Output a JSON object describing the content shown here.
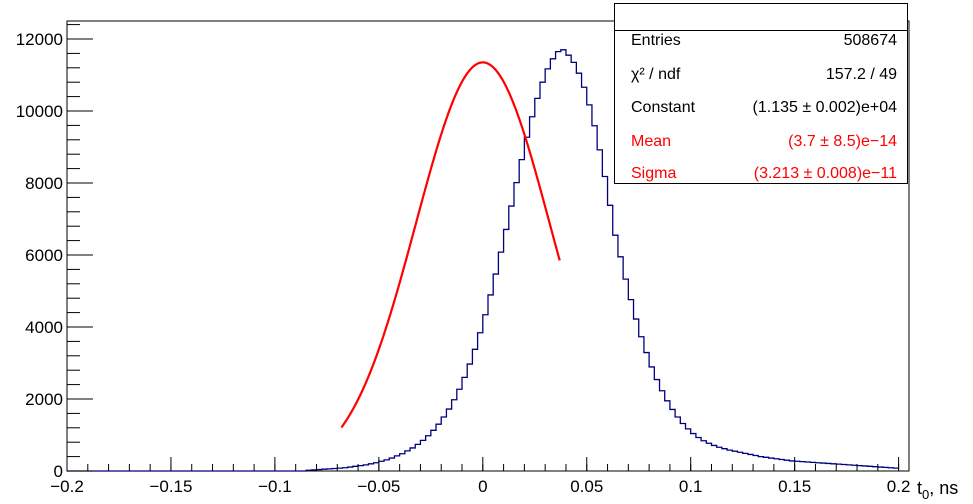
{
  "chart_data": {
    "type": "histogram",
    "xlabel": "t",
    "xlabel_sub": "0",
    "xlabel_suffix": ", ns",
    "xlim": [
      -0.2,
      0.205
    ],
    "ylim": [
      0,
      12500
    ],
    "x_ticks": [
      {
        "v": -0.2,
        "label": "−0.2"
      },
      {
        "v": -0.15,
        "label": "−0.15"
      },
      {
        "v": -0.1,
        "label": "−0.1"
      },
      {
        "v": -0.05,
        "label": "−0.05"
      },
      {
        "v": 0,
        "label": "0"
      },
      {
        "v": 0.05,
        "label": "0.05"
      },
      {
        "v": 0.1,
        "label": "0.1"
      },
      {
        "v": 0.15,
        "label": "0.15"
      },
      {
        "v": 0.2,
        "label": "0.2"
      }
    ],
    "y_ticks": [
      {
        "v": 0,
        "label": "0"
      },
      {
        "v": 2000,
        "label": "2000"
      },
      {
        "v": 4000,
        "label": "4000"
      },
      {
        "v": 6000,
        "label": "6000"
      },
      {
        "v": 8000,
        "label": "8000"
      },
      {
        "v": 10000,
        "label": "10000"
      },
      {
        "v": 12000,
        "label": "12000"
      }
    ],
    "histogram": {
      "color": "#00007f",
      "bin_width": 0.0025,
      "bins_x_start": -0.2,
      "values": [
        0,
        0,
        0,
        0,
        0,
        0,
        0,
        0,
        0,
        0,
        0,
        0,
        0,
        0,
        0,
        0,
        0,
        0,
        0,
        0,
        0,
        0,
        0,
        0,
        0,
        0,
        0,
        0,
        0,
        0,
        0,
        0,
        0,
        0,
        0,
        0,
        0,
        0,
        0,
        0,
        0,
        0,
        0,
        0,
        0,
        0,
        20,
        30,
        40,
        50,
        60,
        70,
        80,
        90,
        110,
        130,
        150,
        170,
        200,
        230,
        270,
        310,
        360,
        420,
        480,
        560,
        640,
        740,
        850,
        980,
        1130,
        1300,
        1500,
        1720,
        1980,
        2270,
        2600,
        2970,
        3380,
        3840,
        4340,
        4890,
        5470,
        6080,
        6710,
        7360,
        8010,
        8650,
        9270,
        9840,
        10350,
        10800,
        11170,
        11450,
        11650,
        11700,
        11550,
        11350,
        11050,
        10660,
        10170,
        9590,
        8920,
        8180,
        7380,
        6550,
        5950,
        5330,
        4760,
        4220,
        3730,
        3290,
        2890,
        2540,
        2230,
        1950,
        1710,
        1500,
        1320,
        1170,
        1040,
        930,
        840,
        770,
        710,
        660,
        620,
        580,
        550,
        520,
        490,
        460,
        430,
        400,
        380,
        360,
        340,
        320,
        300,
        280,
        270,
        260,
        250,
        240,
        230,
        220,
        210,
        200,
        190,
        180,
        170,
        160,
        150,
        140,
        130,
        120,
        110,
        100,
        90,
        80
      ]
    },
    "fit": {
      "type": "gaussian",
      "color": "#ff0000",
      "constant": 11350,
      "mean": 0,
      "sigma": 0.03213,
      "x_range": [
        -0.068,
        0.037
      ]
    }
  },
  "stats": {
    "title": "",
    "rows": [
      {
        "key": "Entries",
        "value": "508674",
        "red": false
      },
      {
        "key": "χ² / ndf",
        "value": "157.2 / 49",
        "red": false
      },
      {
        "key": "Constant",
        "value": "(1.135 ± 0.002)e+04",
        "red": false
      },
      {
        "key": "Mean",
        "value": "(3.7 ± 8.5)e−14",
        "red": true
      },
      {
        "key": "Sigma",
        "value": "(3.213 ± 0.008)e−11",
        "red": true
      }
    ]
  }
}
